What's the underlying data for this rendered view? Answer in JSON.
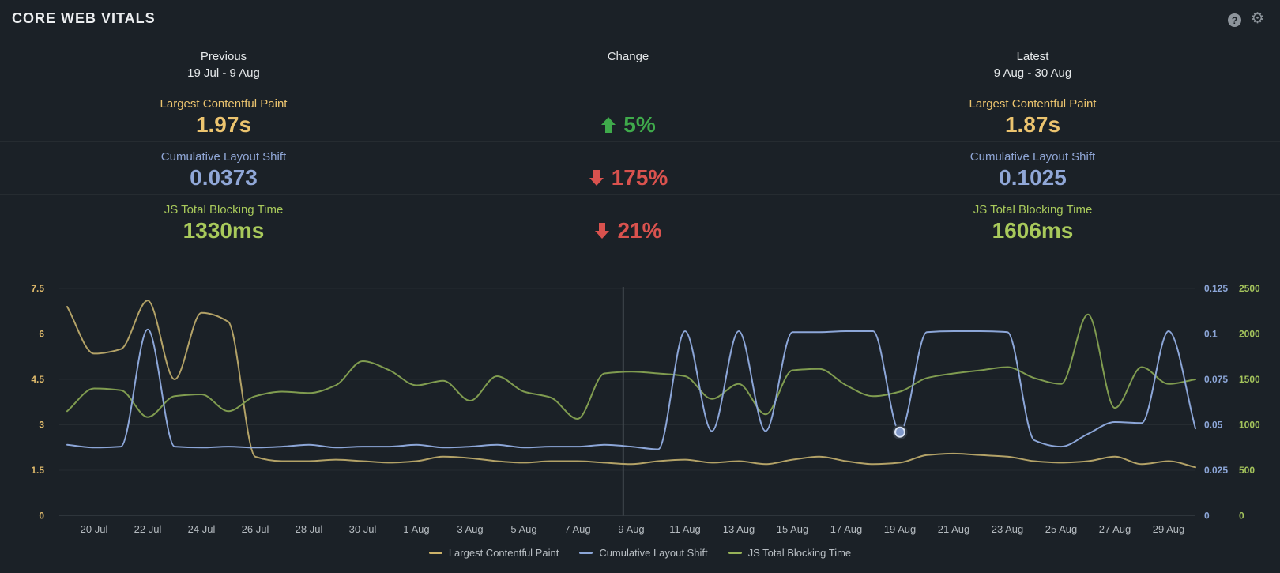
{
  "title": "CORE WEB VITALS",
  "header_icons": {
    "help": "?",
    "gear": "⚙"
  },
  "comparison": {
    "columns": {
      "previous": {
        "label": "Previous",
        "range": "19 Jul - 9 Aug"
      },
      "change": {
        "label": "Change"
      },
      "latest": {
        "label": "Latest",
        "range": "9 Aug - 30 Aug"
      }
    },
    "sentiment_colors": {
      "positive": "#3faa4b",
      "negative": "#d9524e"
    },
    "rows": [
      {
        "metric": "Largest Contentful Paint",
        "previous": "1.97s",
        "change": "5%",
        "direction": "down",
        "sentiment": "positive",
        "latest": "1.87s",
        "color": "#ecc46f"
      },
      {
        "metric": "Cumulative Layout Shift",
        "previous": "0.0373",
        "change": "175%",
        "direction": "up",
        "sentiment": "negative",
        "latest": "0.1025",
        "color": "#90a7d7"
      },
      {
        "metric": "JS Total Blocking Time",
        "previous": "1330ms",
        "change": "21%",
        "direction": "up",
        "sentiment": "negative",
        "latest": "1606ms",
        "color": "#a8c95b"
      }
    ]
  },
  "chart_data": {
    "type": "line",
    "x_tick_labels": [
      "20 Jul",
      "22 Jul",
      "24 Jul",
      "26 Jul",
      "28 Jul",
      "30 Jul",
      "1 Aug",
      "3 Aug",
      "5 Aug",
      "7 Aug",
      "9 Aug",
      "11 Aug",
      "13 Aug",
      "15 Aug",
      "17 Aug",
      "19 Aug",
      "21 Aug",
      "23 Aug",
      "25 Aug",
      "27 Aug",
      "29 Aug"
    ],
    "x_tick_days": [
      1,
      3,
      5,
      7,
      9,
      11,
      13,
      15,
      17,
      19,
      21,
      23,
      25,
      27,
      29,
      31,
      33,
      35,
      37,
      39,
      41
    ],
    "x_start_label": "19 Jul",
    "x_end_label": "30 Aug",
    "divider_day": 20.7,
    "grid": true,
    "legend_position": "bottom",
    "axes": {
      "left": {
        "ticks": [
          "0",
          "1.5",
          "3",
          "4.5",
          "6",
          "7.5"
        ],
        "max": 7.5,
        "color": "#e0bb6c"
      },
      "right_cls": {
        "ticks": [
          "0",
          "0.025",
          "0.05",
          "0.075",
          "0.1",
          "0.125"
        ],
        "max": 0.125,
        "color": "#8ca6d8"
      },
      "right_tbt": {
        "ticks": [
          "0",
          "500",
          "1000",
          "1500",
          "2000",
          "2500"
        ],
        "max": 2500,
        "color": "#a4c45c"
      }
    },
    "series": [
      {
        "name": "Largest Contentful Paint",
        "axis": "left",
        "color": "#b3a267",
        "values": [
          6.9,
          5.35,
          5.5,
          7.1,
          4.5,
          6.7,
          6.4,
          1.95,
          1.8,
          1.8,
          1.85,
          1.8,
          1.75,
          1.8,
          1.95,
          1.9,
          1.8,
          1.75,
          1.8,
          1.8,
          1.75,
          1.7,
          1.8,
          1.85,
          1.75,
          1.8,
          1.7,
          1.85,
          1.95,
          1.8,
          1.7,
          1.75,
          2.0,
          2.05,
          2.0,
          1.95,
          1.8,
          1.75,
          1.8,
          1.95,
          1.7,
          1.8,
          1.6
        ]
      },
      {
        "name": "Cumulative Layout Shift",
        "axis": "right_cls",
        "color": "#8ca6d8",
        "values": [
          0.039,
          0.0375,
          0.038,
          0.1025,
          0.038,
          0.0375,
          0.038,
          0.0375,
          0.038,
          0.039,
          0.0375,
          0.038,
          0.038,
          0.039,
          0.0375,
          0.038,
          0.039,
          0.0375,
          0.038,
          0.038,
          0.039,
          0.038,
          0.0365,
          0.1015,
          0.0465,
          0.1015,
          0.0465,
          0.101,
          0.101,
          0.1015,
          0.1015,
          0.046,
          0.101,
          0.1015,
          0.1015,
          0.101,
          0.0415,
          0.038,
          0.045,
          0.0515,
          0.051,
          0.1015,
          0.048
        ]
      },
      {
        "name": "JS Total Blocking Time",
        "axis": "right_tbt",
        "color": "#809c50",
        "values": [
          1150,
          1400,
          1380,
          1085,
          1315,
          1335,
          1150,
          1315,
          1365,
          1350,
          1435,
          1700,
          1600,
          1435,
          1485,
          1265,
          1535,
          1365,
          1300,
          1065,
          1565,
          1585,
          1565,
          1535,
          1285,
          1450,
          1115,
          1600,
          1615,
          1435,
          1315,
          1365,
          1515,
          1565,
          1600,
          1635,
          1515,
          1450,
          2215,
          1185,
          1635,
          1450,
          1500
        ]
      }
    ],
    "highlight": {
      "series": 1,
      "index": 31
    },
    "legend": [
      {
        "label": "Largest Contentful Paint",
        "color": "#cdb269"
      },
      {
        "label": "Cumulative Layout Shift",
        "color": "#8ca6d8"
      },
      {
        "label": "JS Total Blocking Time",
        "color": "#97b258"
      }
    ]
  }
}
